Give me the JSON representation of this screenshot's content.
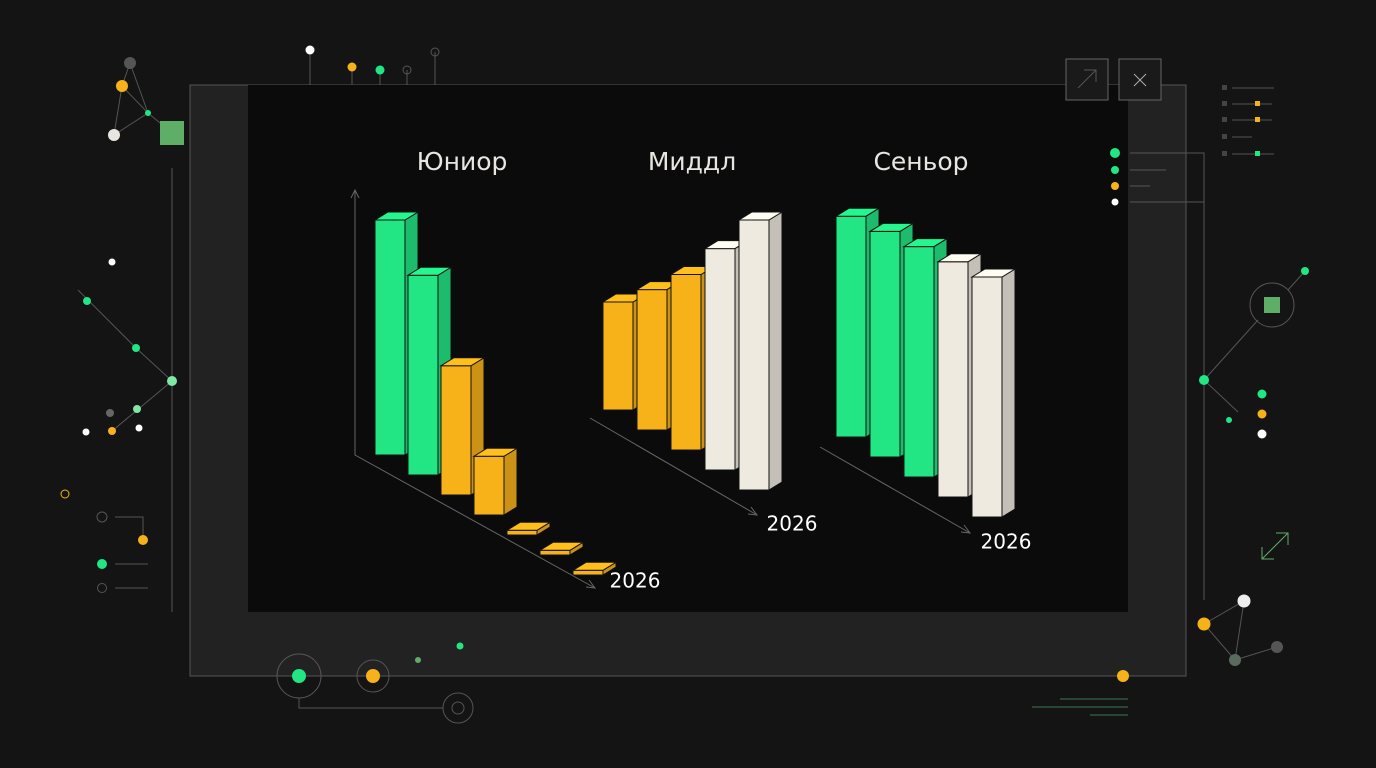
{
  "chart_data": [
    {
      "type": "bar",
      "title": "Юниор",
      "xlabel": "2026",
      "values": [
        100,
        85,
        55,
        25,
        2,
        2,
        2
      ],
      "colors": [
        "#22e584",
        "#22e584",
        "#f7b21a",
        "#f7b21a",
        "#f7b21a",
        "#f7b21a",
        "#f7b21a"
      ],
      "ylim": [
        0,
        100
      ]
    },
    {
      "type": "bar",
      "title": "Миддл",
      "xlabel": "2026",
      "values": [
        40,
        52,
        65,
        82,
        100
      ],
      "colors": [
        "#f7b21a",
        "#f7b21a",
        "#f7b21a",
        "#efeae0",
        "#efeae0"
      ],
      "ylim": [
        0,
        100
      ]
    },
    {
      "type": "bar",
      "title": "Сеньор",
      "xlabel": "2026",
      "values": [
        92,
        94,
        96,
        98,
        100
      ],
      "colors": [
        "#22e584",
        "#22e584",
        "#22e584",
        "#efeae0",
        "#efeae0"
      ],
      "ylim": [
        0,
        100
      ]
    }
  ]
}
